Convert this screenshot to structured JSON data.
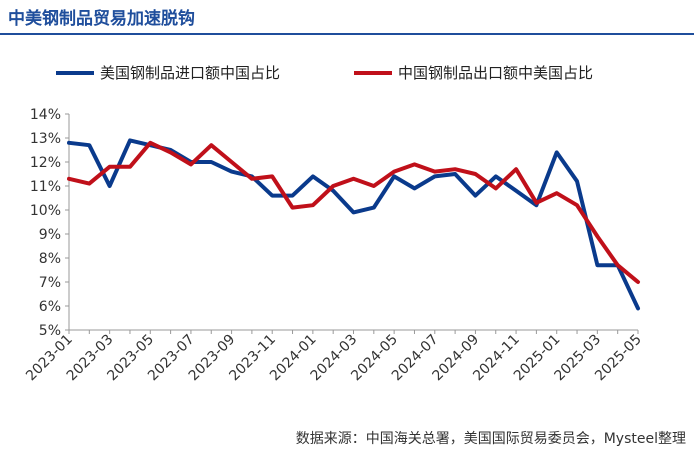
{
  "title": "中美钢制品贸易加速脱钩",
  "source": "数据来源：中国海关总署，美国国际贸易委员会，Mysteel整理",
  "colors": {
    "us_import": "#0a3a8c",
    "cn_export": "#c0101a",
    "title": "#1f4e9c"
  },
  "chart_data": {
    "type": "line",
    "title": "",
    "xlabel": "",
    "ylabel": "",
    "ylim": [
      5,
      14
    ],
    "yticks": [
      "5%",
      "6%",
      "7%",
      "8%",
      "9%",
      "10%",
      "11%",
      "12%",
      "13%",
      "14%"
    ],
    "x": [
      "2023-01",
      "2023-02",
      "2023-03",
      "2023-04",
      "2023-05",
      "2023-06",
      "2023-07",
      "2023-08",
      "2023-09",
      "2023-10",
      "2023-11",
      "2023-12",
      "2024-01",
      "2024-02",
      "2024-03",
      "2024-04",
      "2024-05",
      "2024-06",
      "2024-07",
      "2024-08",
      "2024-09",
      "2024-10",
      "2024-11",
      "2024-12",
      "2025-01",
      "2025-02",
      "2025-03",
      "2025-04",
      "2025-05"
    ],
    "xtick_labels": [
      "2023-01",
      "2023-03",
      "2023-05",
      "2023-07",
      "2023-09",
      "2023-11",
      "2024-01",
      "2024-03",
      "2024-05",
      "2024-07",
      "2024-09",
      "2024-11",
      "2025-01",
      "2025-03",
      "2025-05"
    ],
    "legend_position": "top",
    "grid": false,
    "series": [
      {
        "name": "美国钢制品进口额中国占比",
        "values": [
          12.8,
          12.7,
          11.0,
          12.9,
          12.7,
          12.5,
          12.0,
          12.0,
          11.6,
          11.4,
          10.6,
          10.6,
          11.4,
          10.8,
          9.9,
          10.1,
          11.4,
          10.9,
          11.4,
          11.5,
          10.6,
          11.4,
          10.8,
          10.2,
          12.4,
          11.2,
          7.7,
          7.7,
          5.9
        ]
      },
      {
        "name": "中国钢制品出口额中美国占比",
        "values": [
          11.3,
          11.1,
          11.8,
          11.8,
          12.8,
          12.4,
          11.9,
          12.7,
          12.0,
          11.3,
          11.4,
          10.1,
          10.2,
          11.0,
          11.3,
          11.0,
          11.6,
          11.9,
          11.6,
          11.7,
          11.5,
          10.9,
          11.7,
          10.3,
          10.7,
          10.2,
          8.9,
          7.7,
          7.0
        ]
      }
    ]
  }
}
